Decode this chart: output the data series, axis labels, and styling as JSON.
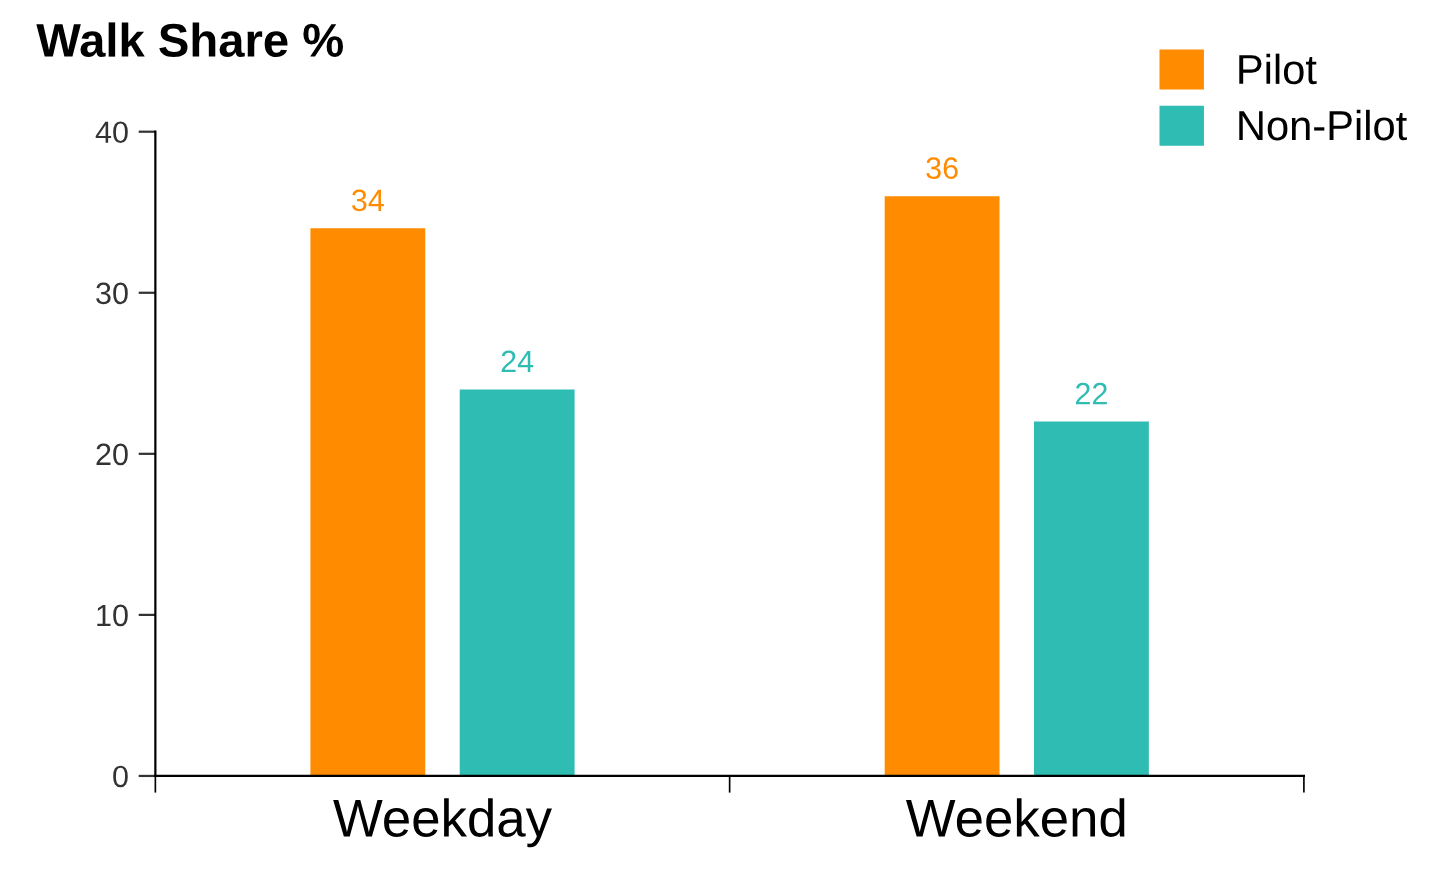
{
  "chart_data": {
    "type": "bar",
    "title": "Walk Share %",
    "categories": [
      "Weekday",
      "Weekend"
    ],
    "series": [
      {
        "name": "Pilot",
        "color": "#ff8c00",
        "values": [
          34,
          36
        ]
      },
      {
        "name": "Non-Pilot",
        "color": "#2ebcb3",
        "values": [
          24,
          22
        ]
      }
    ],
    "ylim": [
      0,
      40
    ],
    "yticks": [
      0,
      10,
      20,
      30,
      40
    ],
    "grid": false,
    "legend": "top right",
    "data_labels": true
  }
}
